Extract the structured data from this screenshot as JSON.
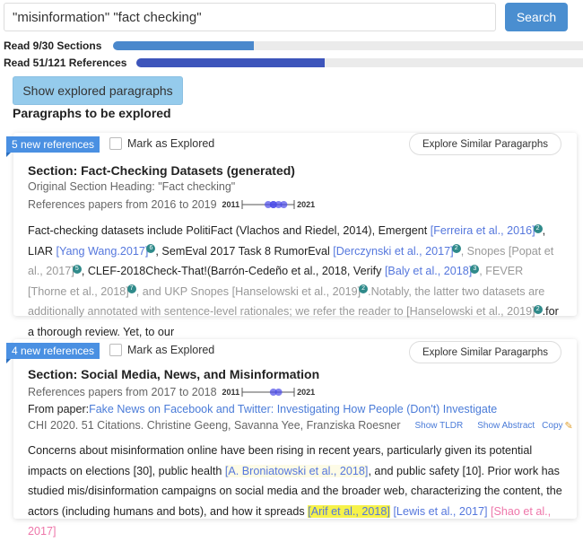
{
  "search": {
    "value": "\"misinformation\" \"fact checking\"",
    "button": "Search"
  },
  "progress": [
    {
      "label": "Read 9/30 Sections",
      "fraction": 0.3,
      "color": "#4a88cc"
    },
    {
      "label": "Read 51/121 References",
      "fraction": 0.4215,
      "color": "#3d55bb"
    }
  ],
  "show_explored": "Show explored paragraphs",
  "paragraphs_title": "Paragraphs to be explored",
  "cards": [
    {
      "badge": "5 new references",
      "mark": "Mark as Explored",
      "explore": "Explore Similar Paragarphs",
      "section": "Section: Fact-Checking Datasets (generated)",
      "original": "Original Section Heading: \"Fact checking\"",
      "refs": "References papers from 2016 to 2019",
      "tl_start": "2011",
      "tl_end": "2021",
      "tl_years": [
        2016,
        2017,
        2017,
        2018,
        2019
      ],
      "segments": [
        {
          "t": "Fact-checking datasets include PolitiFact (Vlachos and Riedel, 2014), Emergent ",
          "c": ""
        },
        {
          "t": "[Ferreira et al., 2016]",
          "c": "link",
          "n": "2"
        },
        {
          "t": ", LIAR ",
          "c": ""
        },
        {
          "t": "[Yang Wang.2017]",
          "c": "link",
          "n": "6"
        },
        {
          "t": ", SemEval 2017 Task 8 RumorEval ",
          "c": ""
        },
        {
          "t": "[Derczynski et al., 2017]",
          "c": "link",
          "n": "2"
        },
        {
          "t": ", Snopes [Popat et al., 2017]",
          "c": "gray",
          "n": "5"
        },
        {
          "t": ", CLEF-2018Check-That!(Barrón-Cedeño et al., 2018, Verify ",
          "c": ""
        },
        {
          "t": "[Baly et al., 2018]",
          "c": "link",
          "n": "3"
        },
        {
          "t": ", FEVER [Thorne et al., 2018]",
          "c": "gray",
          "n": "7"
        },
        {
          "t": ", and UKP Snopes  [Hanselowski et al., 2019]",
          "c": "gray",
          "n": "2"
        },
        {
          "t": ".Notably, the latter two datasets are additionally annotated with sentence-level rationales; we refer the reader to [Hanselowski et al., 2019]",
          "c": "gray",
          "n": "2"
        },
        {
          "t": ".for a thorough review. Yet, to our",
          "c": ""
        }
      ]
    },
    {
      "badge": "4 new references",
      "mark": "Mark as Explored",
      "explore": "Explore Similar Paragarphs",
      "section": "Section: Social Media, News, and Misinformation",
      "refs": "References papers from 2017 to 2018",
      "tl_start": "2011",
      "tl_end": "2021",
      "tl_years": [
        2017,
        2018
      ],
      "from_label": "From paper: ",
      "paper": "Fake News on Facebook and Twitter: Investigating How People (Don't) Investigate",
      "paper_meta": "CHI 2020. 51 Citations. Christine Geeng, Savanna Yee, Franziska Roesner",
      "show_tldr": "Show TLDR",
      "show_abstract": "Show Abstract",
      "copy": "Copy",
      "segments": [
        {
          "t": "Concerns about misinformation online have been rising in recent years, particularly given its potential impacts on elections [30], public health ",
          "c": ""
        },
        {
          "t": "[A. Broniatowski et al., 2018]",
          "c": "hlpale"
        },
        {
          "t": ", and public safety [10]. Prior work has studied mis/disinformation campaigns on social media and the broader web, characterizing the content, the actors (including humans and bots), and how it spreads ",
          "c": ""
        },
        {
          "t": "[Arif et al., 2018]",
          "c": "hl"
        },
        {
          "t": " ",
          "c": ""
        },
        {
          "t": "[Lewis et al., 2017]",
          "c": "link"
        },
        {
          "t": " ",
          "c": ""
        },
        {
          "t": "[Shao et al., 2017]",
          "c": "pink"
        }
      ]
    }
  ]
}
